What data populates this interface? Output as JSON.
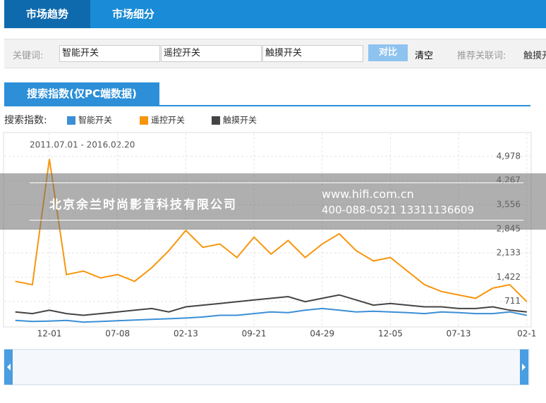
{
  "tabs": [
    "市场趋势",
    "市场细分"
  ],
  "search": {
    "label": "关键词:",
    "keywords": [
      "智能开关",
      "遥控开关",
      "触摸开关"
    ],
    "compare": "对比",
    "clear": "清空",
    "related_label": "推荐关联词:",
    "related": "触摸开"
  },
  "section_tab": "搜索指数(仅PC端数据)",
  "watermark": {
    "company": "北京余兰时尚影音科技有限公司",
    "site": "www.hifi.com.cn",
    "phone": "400-088-0521  13311136609"
  },
  "chart_data": {
    "type": "line",
    "legend_title": "搜索指数:",
    "subtitle": "2011.07.01 - 2016.02.20",
    "grid": true,
    "categories": [
      null,
      null,
      "12-01",
      null,
      null,
      null,
      "07-08",
      null,
      null,
      null,
      "02-13",
      null,
      null,
      null,
      "09-21",
      null,
      null,
      null,
      "04-29",
      null,
      null,
      null,
      "12-05",
      null,
      null,
      null,
      "07-13",
      null,
      null,
      null,
      "02-1"
    ],
    "ylim": [
      0,
      5640
    ],
    "yticks": [
      {
        "value": 711,
        "label": "711"
      },
      {
        "value": 1422,
        "label": "1,422"
      },
      {
        "value": 2133,
        "label": "2,133"
      },
      {
        "value": 2845,
        "label": "2,845"
      },
      {
        "value": 3556,
        "label": "3,556"
      },
      {
        "value": 4267,
        "label": "4,267"
      },
      {
        "value": 4978,
        "label": "4,978"
      }
    ],
    "series": [
      {
        "name": "智能开关",
        "color": "#3b8fd6",
        "values": [
          150,
          120,
          130,
          150,
          100,
          120,
          140,
          160,
          180,
          200,
          220,
          250,
          300,
          300,
          350,
          400,
          380,
          450,
          500,
          450,
          400,
          420,
          400,
          380,
          350,
          400,
          380,
          350,
          350,
          400,
          300
        ]
      },
      {
        "name": "遥控开关",
        "color": "#f7960e",
        "values": [
          1300,
          1200,
          4900,
          1500,
          1600,
          1400,
          1500,
          1300,
          1700,
          2200,
          2800,
          2300,
          2400,
          2000,
          2600,
          2100,
          2500,
          2000,
          2400,
          2700,
          2200,
          1900,
          2000,
          1600,
          1200,
          1000,
          900,
          800,
          1100,
          1200,
          700
        ]
      },
      {
        "name": "触摸开关",
        "color": "#444444",
        "values": [
          400,
          350,
          450,
          350,
          300,
          350,
          400,
          450,
          500,
          400,
          550,
          600,
          650,
          700,
          750,
          800,
          850,
          700,
          800,
          900,
          750,
          600,
          650,
          600,
          550,
          550,
          500,
          500,
          550,
          450,
          400
        ]
      }
    ]
  }
}
